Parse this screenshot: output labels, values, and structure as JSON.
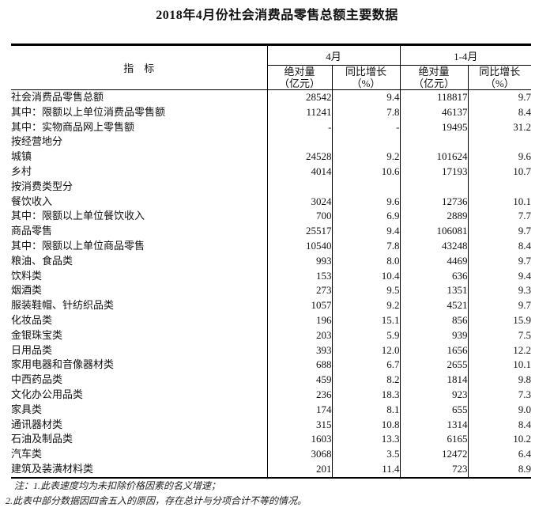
{
  "title": "2018年4月份社会消费品零售总额主要数据",
  "table": {
    "header": {
      "indicator": "指　标",
      "april": "4月",
      "jan_apr": "1-4月",
      "abs": "绝对量\n（亿元）",
      "yoy": "同比增长\n（%）"
    },
    "rows": [
      {
        "label": "社会消费品零售总额",
        "indent": 0,
        "apr_abs": "28542",
        "apr_yoy": "9.4",
        "cum_abs": "118817",
        "cum_yoy": "9.7"
      },
      {
        "label": "其中：限额以上单位消费品零售额",
        "indent": 1,
        "apr_abs": "11241",
        "apr_yoy": "7.8",
        "cum_abs": "46137",
        "cum_yoy": "8.4"
      },
      {
        "label": "其中：实物商品网上零售额",
        "indent": 2,
        "apr_abs": "-",
        "apr_yoy": "-",
        "cum_abs": "19495",
        "cum_yoy": "31.2"
      },
      {
        "label": "按经营地分",
        "indent": 0,
        "apr_abs": "",
        "apr_yoy": "",
        "cum_abs": "",
        "cum_yoy": ""
      },
      {
        "label": "城镇",
        "indent": 1,
        "apr_abs": "24528",
        "apr_yoy": "9.2",
        "cum_abs": "101624",
        "cum_yoy": "9.6"
      },
      {
        "label": "乡村",
        "indent": 1,
        "apr_abs": "4014",
        "apr_yoy": "10.6",
        "cum_abs": "17193",
        "cum_yoy": "10.7"
      },
      {
        "label": "按消费类型分",
        "indent": 0,
        "apr_abs": "",
        "apr_yoy": "",
        "cum_abs": "",
        "cum_yoy": ""
      },
      {
        "label": "餐饮收入",
        "indent": 1,
        "apr_abs": "3024",
        "apr_yoy": "9.6",
        "cum_abs": "12736",
        "cum_yoy": "10.1"
      },
      {
        "label": "其中：限额以上单位餐饮收入",
        "indent": 3,
        "apr_abs": "700",
        "apr_yoy": "6.9",
        "cum_abs": "2889",
        "cum_yoy": "7.7"
      },
      {
        "label": "商品零售",
        "indent": 1,
        "apr_abs": "25517",
        "apr_yoy": "9.4",
        "cum_abs": "106081",
        "cum_yoy": "9.7"
      },
      {
        "label": "其中：限额以上单位商品零售",
        "indent": 3,
        "apr_abs": "10540",
        "apr_yoy": "7.8",
        "cum_abs": "43248",
        "cum_yoy": "8.4"
      },
      {
        "label": "粮油、食品类",
        "indent": 4,
        "apr_abs": "993",
        "apr_yoy": "8.0",
        "cum_abs": "4469",
        "cum_yoy": "9.7"
      },
      {
        "label": "饮料类",
        "indent": 4,
        "apr_abs": "153",
        "apr_yoy": "10.4",
        "cum_abs": "636",
        "cum_yoy": "9.4"
      },
      {
        "label": "烟酒类",
        "indent": 4,
        "apr_abs": "273",
        "apr_yoy": "9.5",
        "cum_abs": "1351",
        "cum_yoy": "9.3"
      },
      {
        "label": "服装鞋帽、针纺织品类",
        "indent": 4,
        "apr_abs": "1057",
        "apr_yoy": "9.2",
        "cum_abs": "4521",
        "cum_yoy": "9.7"
      },
      {
        "label": "化妆品类",
        "indent": 4,
        "apr_abs": "196",
        "apr_yoy": "15.1",
        "cum_abs": "856",
        "cum_yoy": "15.9"
      },
      {
        "label": "金银珠宝类",
        "indent": 4,
        "apr_abs": "203",
        "apr_yoy": "5.9",
        "cum_abs": "939",
        "cum_yoy": "7.5"
      },
      {
        "label": "日用品类",
        "indent": 4,
        "apr_abs": "393",
        "apr_yoy": "12.0",
        "cum_abs": "1656",
        "cum_yoy": "12.2"
      },
      {
        "label": "家用电器和音像器材类",
        "indent": 4,
        "apr_abs": "688",
        "apr_yoy": "6.7",
        "cum_abs": "2655",
        "cum_yoy": "10.1"
      },
      {
        "label": "中西药品类",
        "indent": 4,
        "apr_abs": "459",
        "apr_yoy": "8.2",
        "cum_abs": "1814",
        "cum_yoy": "9.8"
      },
      {
        "label": "文化办公用品类",
        "indent": 4,
        "apr_abs": "236",
        "apr_yoy": "18.3",
        "cum_abs": "923",
        "cum_yoy": "7.3"
      },
      {
        "label": "家具类",
        "indent": 4,
        "apr_abs": "174",
        "apr_yoy": "8.1",
        "cum_abs": "655",
        "cum_yoy": "9.0"
      },
      {
        "label": "通讯器材类",
        "indent": 4,
        "apr_abs": "315",
        "apr_yoy": "10.8",
        "cum_abs": "1314",
        "cum_yoy": "8.4"
      },
      {
        "label": "石油及制品类",
        "indent": 4,
        "apr_abs": "1603",
        "apr_yoy": "13.3",
        "cum_abs": "6165",
        "cum_yoy": "10.2"
      },
      {
        "label": "汽车类",
        "indent": 4,
        "apr_abs": "3068",
        "apr_yoy": "3.5",
        "cum_abs": "12472",
        "cum_yoy": "6.4"
      },
      {
        "label": "建筑及装潢材料类",
        "indent": 4,
        "apr_abs": "201",
        "apr_yoy": "11.4",
        "cum_abs": "723",
        "cum_yoy": "8.9"
      }
    ]
  },
  "notes": {
    "line1": "注：1.此表速度均为未扣除价格因素的名义增速；",
    "line2": "2.此表中部分数据因四舍五入的原因，存在总计与分项合计不等的情况。"
  }
}
